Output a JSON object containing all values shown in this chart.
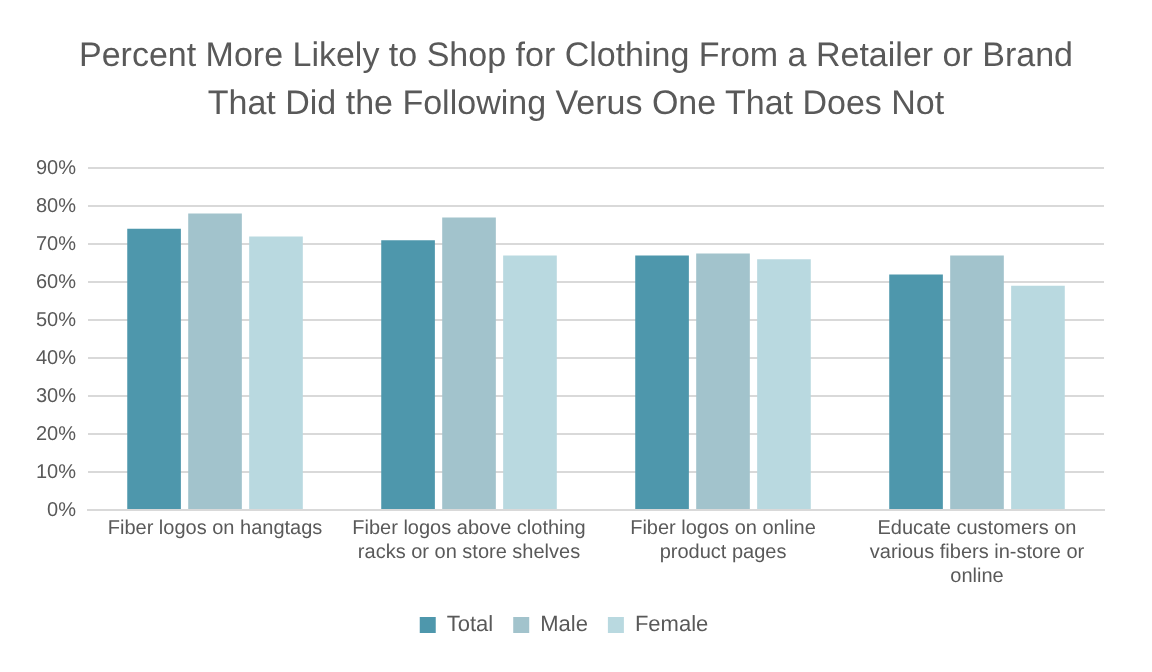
{
  "chart_data": {
    "type": "bar",
    "title": "Percent More Likely to Shop for Clothing From a Retailer or Brand That Did the Following Verus One That Does Not",
    "categories": [
      "Fiber logos on hangtags",
      "Fiber logos above clothing racks or on store shelves",
      "Fiber logos on online product pages",
      "Educate customers on various fibers in-store or online"
    ],
    "series": [
      {
        "name": "Total",
        "color": "#4e97ac",
        "values": [
          74,
          71,
          67,
          62
        ]
      },
      {
        "name": "Male",
        "color": "#a2c3cc",
        "values": [
          78,
          77,
          67.5,
          67
        ]
      },
      {
        "name": "Female",
        "color": "#b9d9e0",
        "values": [
          72,
          67,
          66,
          59
        ]
      }
    ],
    "ylim": [
      0,
      90
    ],
    "yticks": [
      {
        "value": 0,
        "label": "0%"
      },
      {
        "value": 10,
        "label": "10%"
      },
      {
        "value": 20,
        "label": "20%"
      },
      {
        "value": 30,
        "label": "30%"
      },
      {
        "value": 40,
        "label": "40%"
      },
      {
        "value": 50,
        "label": "50%"
      },
      {
        "value": 60,
        "label": "60%"
      },
      {
        "value": 70,
        "label": "70%"
      },
      {
        "value": 80,
        "label": "80%"
      },
      {
        "value": 90,
        "label": "90%"
      }
    ],
    "grid": "y",
    "legend": "bottom"
  }
}
